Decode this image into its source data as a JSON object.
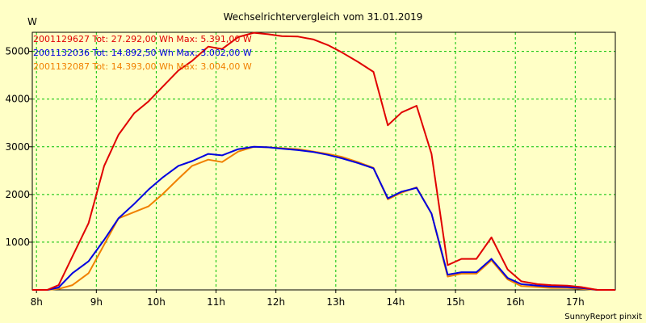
{
  "chart_data": {
    "type": "line",
    "title": "Wechselrichtervergleich vom 31.01.2019",
    "ylabel": "W",
    "xlabel": "",
    "footer": "SunnyReport pinxit",
    "xlim": [
      7.93,
      17.67
    ],
    "ylim": [
      0,
      5400
    ],
    "grid": true,
    "legend_position": "top-left",
    "x_ticks": [
      8,
      9,
      10,
      11,
      12,
      13,
      14,
      15,
      16,
      17
    ],
    "x_tick_labels": [
      "8h",
      "9h",
      "10h",
      "11h",
      "12h",
      "13h",
      "14h",
      "15h",
      "16h",
      "17h"
    ],
    "y_ticks": [
      1000,
      2000,
      3000,
      4000,
      5000
    ],
    "y_tick_labels": [
      "1000",
      "2000",
      "3000",
      "4000",
      "5000"
    ],
    "series": [
      {
        "name": "2001129627",
        "label": "2001129627 Tot: 27.292,00 Wh Max: 5.391,00 W",
        "color": "#E00000",
        "x": [
          7.93,
          8.18,
          8.37,
          8.6,
          8.87,
          9.13,
          9.37,
          9.63,
          9.87,
          10.1,
          10.37,
          10.6,
          10.87,
          11.1,
          11.37,
          11.63,
          11.87,
          12.1,
          12.37,
          12.63,
          12.87,
          13.1,
          13.37,
          13.63,
          13.87,
          14.1,
          14.35,
          14.6,
          14.87,
          15.1,
          15.35,
          15.6,
          15.87,
          16.1,
          16.37,
          16.6,
          16.87,
          17.1,
          17.37,
          17.67
        ],
        "values": [
          0,
          0,
          100,
          700,
          1400,
          2600,
          3250,
          3700,
          3950,
          4250,
          4600,
          4800,
          5100,
          5050,
          5300,
          5390,
          5360,
          5320,
          5310,
          5250,
          5130,
          4980,
          4780,
          4570,
          3450,
          3720,
          3860,
          2850,
          520,
          650,
          650,
          1100,
          430,
          180,
          120,
          100,
          90,
          60,
          0,
          0
        ]
      },
      {
        "name": "2001132036",
        "label": "2001132036 Tot: 14.892,50 Wh Max: 3.002,00 W",
        "color": "#0000E0",
        "x": [
          7.93,
          8.18,
          8.37,
          8.6,
          8.87,
          9.13,
          9.37,
          9.63,
          9.87,
          10.1,
          10.37,
          10.6,
          10.87,
          11.1,
          11.37,
          11.63,
          11.87,
          12.1,
          12.37,
          12.63,
          12.87,
          13.1,
          13.37,
          13.63,
          13.87,
          14.1,
          14.35,
          14.6,
          14.87,
          15.1,
          15.35,
          15.6,
          15.87,
          16.1,
          16.37,
          16.6,
          16.87,
          17.1,
          17.37,
          17.67
        ],
        "values": [
          0,
          0,
          50,
          350,
          600,
          1050,
          1500,
          1800,
          2100,
          2350,
          2600,
          2700,
          2850,
          2820,
          2950,
          3000,
          2990,
          2960,
          2930,
          2890,
          2830,
          2760,
          2660,
          2550,
          1920,
          2060,
          2140,
          1600,
          320,
          370,
          370,
          650,
          250,
          120,
          90,
          70,
          60,
          40,
          0,
          0
        ]
      },
      {
        "name": "2001132087",
        "label": "2001132087 Tot: 14.393,00 Wh Max: 3.004,00 W",
        "color": "#F08000",
        "x": [
          7.93,
          8.18,
          8.37,
          8.6,
          8.87,
          9.13,
          9.37,
          9.63,
          9.87,
          10.1,
          10.37,
          10.6,
          10.87,
          11.1,
          11.37,
          11.63,
          11.87,
          12.1,
          12.37,
          12.63,
          12.87,
          13.1,
          13.37,
          13.63,
          13.87,
          14.1,
          14.35,
          14.6,
          14.87,
          15.1,
          15.35,
          15.6,
          15.87,
          16.1,
          16.37,
          16.6,
          16.87,
          17.1,
          17.37,
          17.67
        ],
        "values": [
          0,
          0,
          20,
          100,
          350,
          950,
          1500,
          1630,
          1750,
          2000,
          2330,
          2600,
          2730,
          2680,
          2900,
          3000,
          2990,
          2970,
          2950,
          2900,
          2850,
          2790,
          2680,
          2560,
          1900,
          2040,
          2150,
          1600,
          280,
          340,
          340,
          620,
          220,
          80,
          60,
          40,
          40,
          20,
          0,
          0
        ]
      }
    ]
  }
}
